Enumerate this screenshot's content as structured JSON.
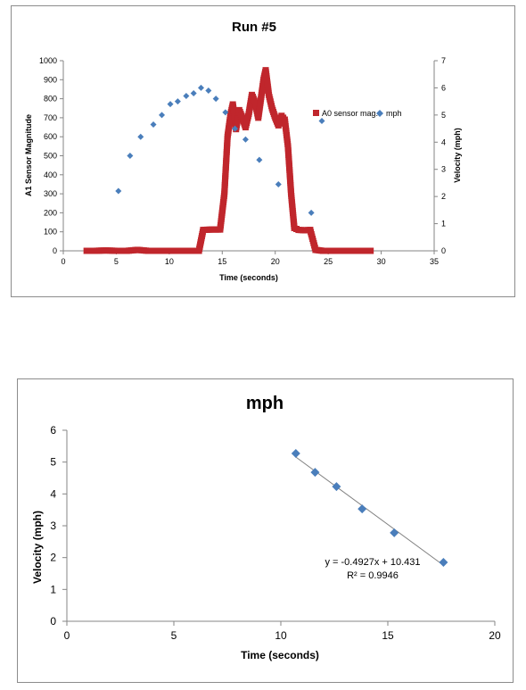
{
  "chart_data": [
    {
      "type": "scatter",
      "title": "Run #5",
      "xlabel": "Time (seconds)",
      "ylabel": "A1 Sensor Magnitude",
      "y2label": "Velocity (mph)",
      "xlim": [
        0,
        35
      ],
      "ylim": [
        0,
        1000
      ],
      "y2lim": [
        0,
        7
      ],
      "xticks": [
        "0",
        "5",
        "10",
        "15",
        "20",
        "25",
        "30",
        "35"
      ],
      "yticks": [
        "0",
        "100",
        "200",
        "300",
        "400",
        "500",
        "600",
        "700",
        "800",
        "900",
        "1000"
      ],
      "y2ticks": [
        "0",
        "1",
        "2",
        "3",
        "4",
        "5",
        "6",
        "7"
      ],
      "legend_position": "right",
      "colors": {
        "sensor": "#c0262c",
        "mph": "#4a7ebb"
      },
      "series": [
        {
          "name": "A0 sensor mag.",
          "axis": "left",
          "marker": "square",
          "points": [
            [
              2.2,
              0
            ],
            [
              3.0,
              0
            ],
            [
              4.0,
              2
            ],
            [
              5.0,
              0
            ],
            [
              6.0,
              0
            ],
            [
              7.0,
              5
            ],
            [
              8.0,
              0
            ],
            [
              9.0,
              0
            ],
            [
              10.0,
              0
            ],
            [
              11.0,
              0
            ],
            [
              12.0,
              0
            ],
            [
              12.8,
              0
            ],
            [
              13.2,
              110
            ],
            [
              14.0,
              112
            ],
            [
              14.8,
              112
            ],
            [
              15.2,
              300
            ],
            [
              15.5,
              600
            ],
            [
              15.8,
              720
            ],
            [
              16.0,
              770
            ],
            [
              16.3,
              640
            ],
            [
              16.6,
              740
            ],
            [
              16.9,
              700
            ],
            [
              17.2,
              650
            ],
            [
              17.5,
              720
            ],
            [
              17.8,
              820
            ],
            [
              18.1,
              780
            ],
            [
              18.4,
              700
            ],
            [
              18.7,
              820
            ],
            [
              18.9,
              900
            ],
            [
              19.1,
              950
            ],
            [
              19.4,
              820
            ],
            [
              19.7,
              750
            ],
            [
              20.0,
              700
            ],
            [
              20.3,
              660
            ],
            [
              20.6,
              710
            ],
            [
              20.9,
              690
            ],
            [
              21.2,
              550
            ],
            [
              21.5,
              300
            ],
            [
              21.8,
              120
            ],
            [
              22.2,
              110
            ],
            [
              22.8,
              108
            ],
            [
              23.3,
              110
            ],
            [
              23.8,
              5
            ],
            [
              24.5,
              0
            ],
            [
              25.5,
              0
            ],
            [
              26.5,
              0
            ],
            [
              27.5,
              0
            ],
            [
              28.5,
              0
            ],
            [
              29.0,
              0
            ]
          ]
        },
        {
          "name": "mph",
          "axis": "right",
          "marker": "diamond",
          "points": [
            [
              5.2,
              2.2
            ],
            [
              6.3,
              3.5
            ],
            [
              7.3,
              4.2
            ],
            [
              8.5,
              4.65
            ],
            [
              9.3,
              5.0
            ],
            [
              10.1,
              5.4
            ],
            [
              10.8,
              5.5
            ],
            [
              11.6,
              5.7
            ],
            [
              12.3,
              5.8
            ],
            [
              13.0,
              6.0
            ],
            [
              13.7,
              5.9
            ],
            [
              14.4,
              5.6
            ],
            [
              15.3,
              5.1
            ],
            [
              16.2,
              4.5
            ],
            [
              17.2,
              4.1
            ],
            [
              18.5,
              3.35
            ],
            [
              20.3,
              2.45
            ],
            [
              23.4,
              1.4
            ],
            [
              24.4,
              4.78
            ]
          ]
        }
      ]
    },
    {
      "type": "scatter",
      "title": "mph",
      "xlabel": "Time (seconds)",
      "ylabel": "Velocity (mph)",
      "xlim": [
        0,
        20
      ],
      "ylim": [
        0,
        6
      ],
      "xticks": [
        "0",
        "5",
        "10",
        "15",
        "20"
      ],
      "yticks": [
        "0",
        "1",
        "2",
        "3",
        "4",
        "5",
        "6"
      ],
      "colors": {
        "points": "#4a7ebb",
        "trendline": "#808080"
      },
      "series": [
        {
          "name": "mph",
          "points": [
            [
              10.7,
              5.27
            ],
            [
              11.6,
              4.68
            ],
            [
              12.6,
              4.23
            ],
            [
              13.8,
              3.53
            ],
            [
              15.3,
              2.78
            ],
            [
              17.6,
              1.85
            ]
          ]
        }
      ],
      "trendline": {
        "slope": -0.4927,
        "intercept": 10.431,
        "x_range": [
          10.7,
          17.6
        ],
        "equation": "y = -0.4927x + 10.431",
        "r_squared": "R² = 0.9946"
      }
    }
  ]
}
